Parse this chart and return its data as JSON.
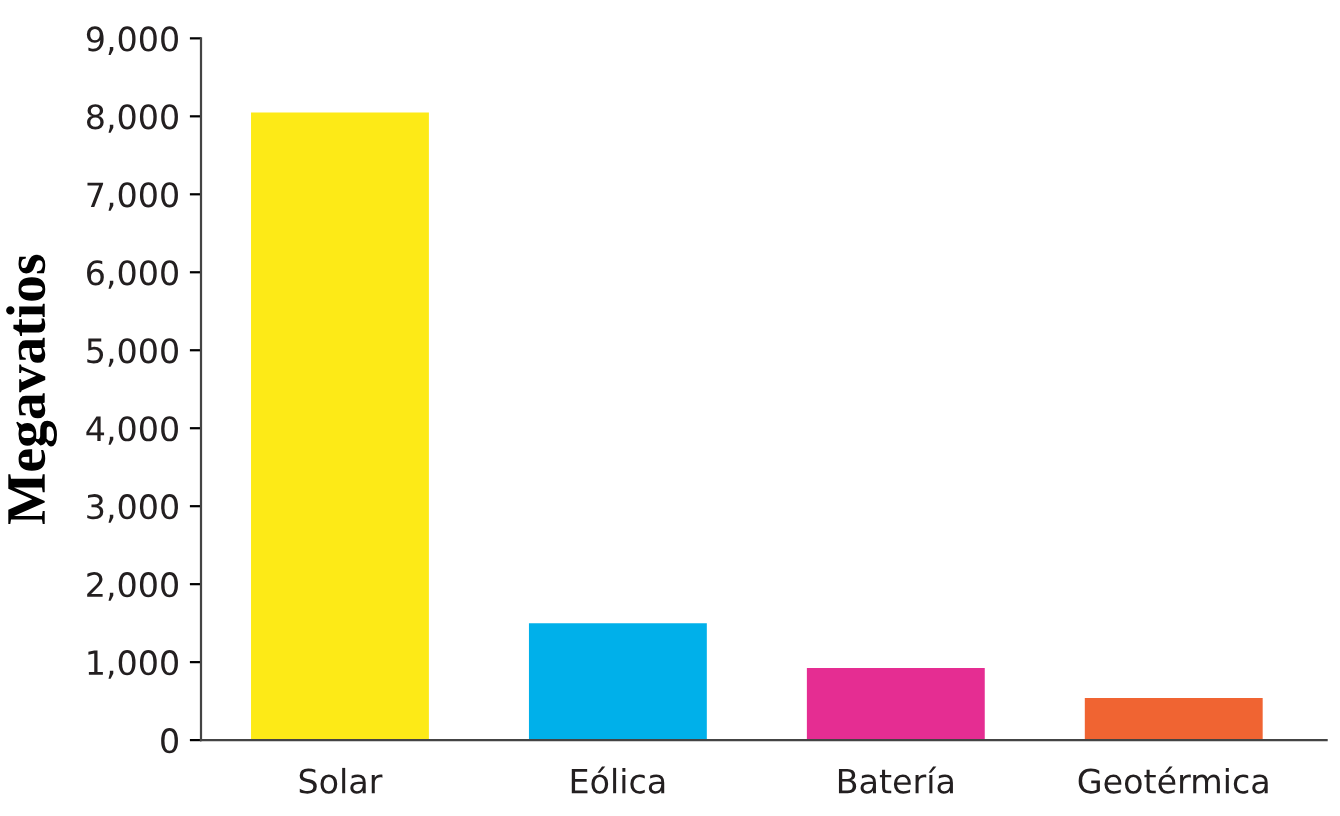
{
  "chart_data": {
    "type": "bar",
    "ylabel": "Megavatios",
    "categories": [
      "Solar",
      "Eólica",
      "Batería",
      "Geotérmica"
    ],
    "values": [
      8050,
      1500,
      925,
      540
    ],
    "colors": [
      "#fdea17",
      "#00b0ea",
      "#e52d92",
      "#f06432"
    ],
    "ylim": [
      0,
      9000
    ],
    "yticks": [
      {
        "value": 0,
        "label": "0"
      },
      {
        "value": 1000,
        "label": "1,000"
      },
      {
        "value": 2000,
        "label": "2,000"
      },
      {
        "value": 3000,
        "label": "3,000"
      },
      {
        "value": 4000,
        "label": "4,000"
      },
      {
        "value": 5000,
        "label": "5,000"
      },
      {
        "value": 6000,
        "label": "6,000"
      },
      {
        "value": 7000,
        "label": "7,000"
      },
      {
        "value": 8000,
        "label": "8,000"
      },
      {
        "value": 9000,
        "label": "9,000"
      }
    ],
    "grid": false
  }
}
